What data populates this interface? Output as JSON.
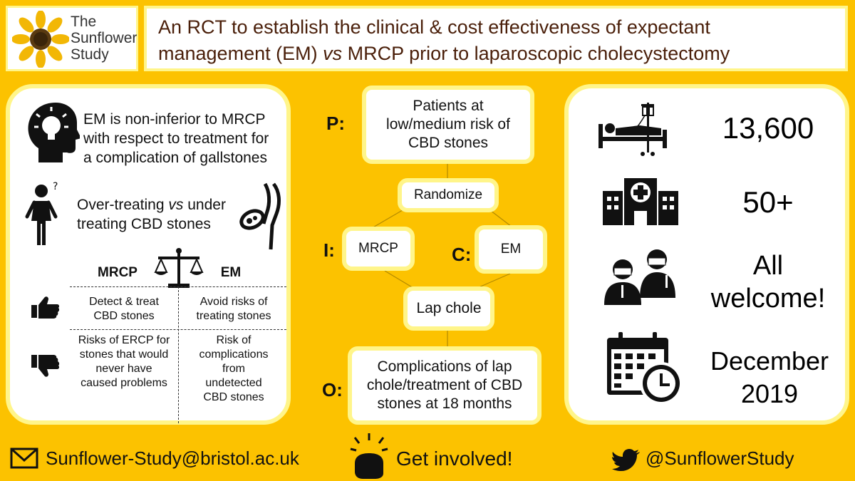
{
  "logo": {
    "line1": "The",
    "line2": "Sunflower",
    "line3": "Study"
  },
  "title": {
    "line1": "An RCT to establish the clinical & cost effectiveness of expectant",
    "line2_pre": "management (EM) ",
    "line2_vs": "vs",
    "line2_post": " MRCP prior to laparoscopic cholecystectomy"
  },
  "hypothesis": {
    "line1": "EM is non-inferior to MRCP",
    "line2": "with respect to treatment for",
    "line3": "a complication of gallstones"
  },
  "dilemma": {
    "line1_pre": "Over-treating ",
    "line1_vs": "vs",
    "line1_post": " under",
    "line2": "treating CBD stones"
  },
  "comparison": {
    "col_mrcp": "MRCP",
    "col_em": "EM",
    "pros_mrcp": [
      "Detect & treat",
      "CBD stones"
    ],
    "pros_em": [
      "Avoid risks of",
      "treating stones"
    ],
    "cons_mrcp": [
      "Risks of ERCP for",
      "stones that would",
      "never have",
      "caused problems"
    ],
    "cons_em": [
      "Risk of",
      "complications",
      "from",
      "undetected",
      "CBD stones"
    ]
  },
  "pico": {
    "p_label": "P:",
    "p_text": [
      "Patients at",
      "low/medium risk of",
      "CBD stones"
    ],
    "randomize": "Randomize",
    "i_label": "I:",
    "i_text": "MRCP",
    "c_label": "C:",
    "c_text": "EM",
    "lap": "Lap chole",
    "o_label": "O:",
    "o_text": [
      "Complications of lap",
      "chole/treatment of CBD",
      "stones at 18 months"
    ]
  },
  "stats": {
    "patients": "13,600",
    "sites": "50+",
    "welcome_line1": "All",
    "welcome_line2": "welcome!",
    "date_line1": "December",
    "date_line2": "2019"
  },
  "footer": {
    "email": "Sunflower-Study@bristol.ac.uk",
    "cta": "Get involved!",
    "twitter": "@SunflowerStudy"
  }
}
